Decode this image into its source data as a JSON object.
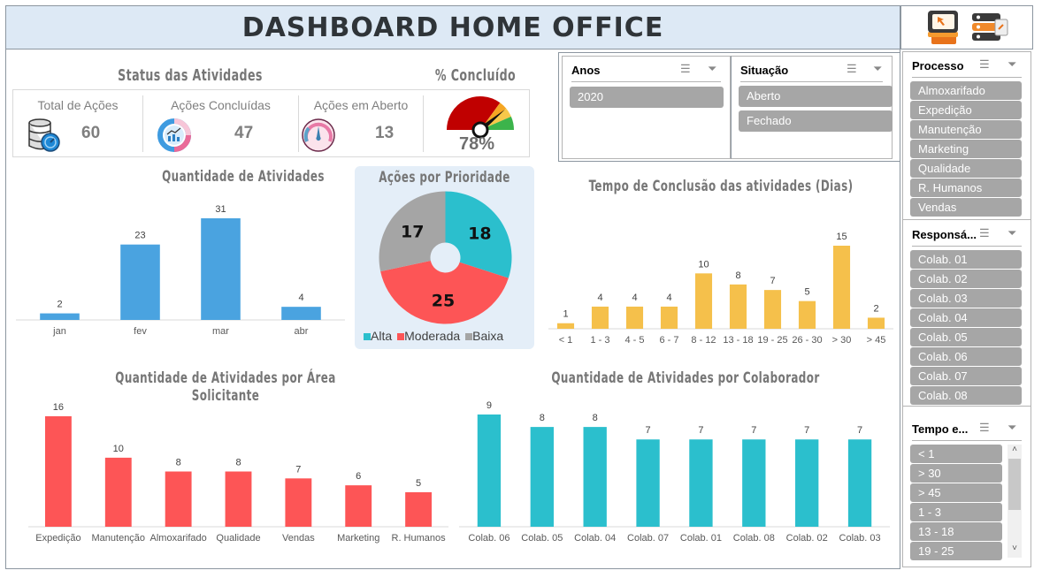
{
  "header": {
    "title": "DASHBOARD HOME OFFICE",
    "icons": [
      "monitor-cursor-icon",
      "files-icon"
    ]
  },
  "status": {
    "title": "Status das Atividades",
    "kpis": [
      {
        "label": "Total de Ações",
        "value": "60",
        "icon": "database-gauge-icon"
      },
      {
        "label": "Ações Concluídas",
        "value": "47",
        "icon": "donut-chart-icon"
      },
      {
        "label": "Ações em Aberto",
        "value": "13",
        "icon": "speedometer-icon"
      }
    ]
  },
  "gauge": {
    "title": "% Concluído",
    "value": "78%",
    "fraction": 0.78
  },
  "slicers": {
    "anos": {
      "title": "Anos",
      "items": [
        "2020"
      ]
    },
    "situacao": {
      "title": "Situação",
      "items": [
        "Aberto",
        "Fechado"
      ]
    },
    "processo": {
      "title": "Processo",
      "items": [
        "Almoxarifado",
        "Expedição",
        "Manutenção",
        "Marketing",
        "Qualidade",
        "R. Humanos",
        "Vendas"
      ]
    },
    "responsavel": {
      "title": "Responsá...",
      "items": [
        "Colab. 01",
        "Colab. 02",
        "Colab. 03",
        "Colab. 04",
        "Colab. 05",
        "Colab. 06",
        "Colab. 07",
        "Colab. 08"
      ]
    },
    "tempo": {
      "title": "Tempo e...",
      "items": [
        "< 1",
        "> 30",
        "> 45",
        "1 - 3",
        "13 - 18",
        "19 - 25"
      ]
    }
  },
  "colors": {
    "blue": "#4aa3e0",
    "teal": "#2bbfcd",
    "red": "#fd5556",
    "gray": "#a5a5a5",
    "yellow": "#f5c04b"
  },
  "chart_data": [
    {
      "type": "bar",
      "title": "Quantidade de Atividades",
      "categories": [
        "jan",
        "fev",
        "mar",
        "abr"
      ],
      "values": [
        2,
        23,
        31,
        4
      ],
      "ylim": [
        0,
        31
      ],
      "grid": false
    },
    {
      "type": "pie",
      "title": "Ações por Prioridade",
      "categories": [
        "Alta",
        "Moderada",
        "Baixa"
      ],
      "values": [
        18,
        25,
        17
      ],
      "legend": "bottom"
    },
    {
      "type": "bar",
      "title": "Tempo de Conclusão das atividades (Dias)",
      "categories": [
        "< 1",
        "1 - 3",
        "4 - 5",
        "6 - 7",
        "8 - 12",
        "13 - 18",
        "19 - 25",
        "26 - 30",
        "> 30",
        "> 45"
      ],
      "values": [
        1,
        4,
        4,
        4,
        10,
        8,
        7,
        5,
        15,
        2
      ],
      "ylim": [
        0,
        15
      ],
      "grid": false
    },
    {
      "type": "bar",
      "title": "Quantidade de Atividades por Área Solicitante",
      "categories": [
        "Expedição",
        "Manutenção",
        "Almoxarifado",
        "Qualidade",
        "Vendas",
        "Marketing",
        "R. Humanos"
      ],
      "values": [
        16,
        10,
        8,
        8,
        7,
        6,
        5
      ],
      "ylim": [
        0,
        16
      ],
      "grid": false
    },
    {
      "type": "bar",
      "title": "Quantidade de Atividades por Colaborador",
      "categories": [
        "Colab. 06",
        "Colab. 05",
        "Colab. 04",
        "Colab. 07",
        "Colab. 01",
        "Colab. 08",
        "Colab. 02",
        "Colab. 03"
      ],
      "values": [
        9,
        8,
        8,
        7,
        7,
        7,
        7,
        7
      ],
      "ylim": [
        0,
        9
      ],
      "grid": false
    }
  ]
}
